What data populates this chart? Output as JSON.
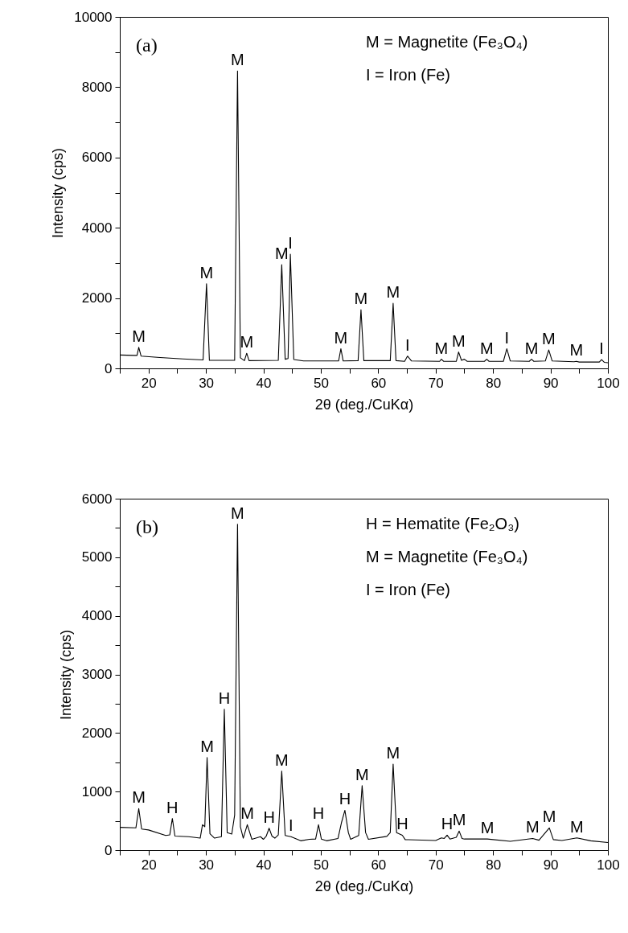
{
  "chart_data": [
    {
      "type": "line",
      "title": "(a)",
      "xlabel": "2θ (deg./CuKα)",
      "ylabel": "Intensity (cps)",
      "xlim": [
        15,
        100
      ],
      "xticks": [
        {
          "value": 15,
          "label": null
        },
        20,
        {
          "value": 25,
          "label": null
        },
        30,
        {
          "value": 35,
          "label": null
        },
        40,
        {
          "value": 45,
          "label": null
        },
        50,
        {
          "value": 55,
          "label": null
        },
        60,
        {
          "value": 65,
          "label": null
        },
        70,
        {
          "value": 75,
          "label": null
        },
        80,
        {
          "value": 85,
          "label": null
        },
        90,
        {
          "value": 95,
          "label": null
        },
        100
      ],
      "ylim": [
        0,
        10000
      ],
      "yticks": [
        0,
        {
          "value": 1000,
          "label": null
        },
        2000,
        {
          "value": 3000,
          "label": null
        },
        4000,
        {
          "value": 5000,
          "label": null
        },
        6000,
        {
          "value": 7000,
          "label": null
        },
        8000,
        {
          "value": 9000,
          "label": null
        },
        10000
      ],
      "x": [
        15,
        17.5,
        18,
        18.3,
        18.7,
        22,
        26,
        29.5,
        30.1,
        30.6,
        35,
        35.5,
        36,
        36.7,
        37.1,
        37.5,
        42.6,
        43.2,
        43.8,
        44.3,
        44.7,
        45.3,
        47,
        53.1,
        53.5,
        53.9,
        56.5,
        57,
        57.5,
        62.1,
        62.6,
        63.1,
        64.6,
        65.1,
        65.8,
        70.7,
        71,
        71.4,
        73.6,
        74,
        74.5,
        75,
        75.5,
        78.5,
        78.9,
        79.3,
        81.8,
        82.4,
        83,
        86.3,
        86.7,
        87.1,
        89.1,
        89.7,
        90.3,
        94.1,
        94.5,
        95,
        98.5,
        98.9,
        99.4,
        100
      ],
      "series": [
        {
          "color": "#000000",
          "values": [
            380,
            370,
            370,
            600,
            350,
            310,
            270,
            240,
            2410,
            230,
            230,
            8460,
            300,
            220,
            430,
            220,
            230,
            2950,
            260,
            280,
            3250,
            250,
            210,
            210,
            560,
            210,
            220,
            1670,
            220,
            220,
            1850,
            220,
            200,
            350,
            210,
            200,
            260,
            200,
            200,
            465,
            230,
            260,
            200,
            200,
            260,
            200,
            200,
            560,
            210,
            200,
            260,
            200,
            210,
            525,
            210,
            190,
            200,
            180,
            180,
            250,
            170,
            160
          ]
        }
      ],
      "annotations": [
        "M = Magnetite (Fe₃O₄)",
        "I = Iron (Fe)",
        {
          "text": "M",
          "x": 18.3,
          "y": 600
        },
        {
          "text": "M",
          "x": 30.1,
          "y": 2410
        },
        {
          "text": "M",
          "x": 35.5,
          "y": 8460
        },
        {
          "text": "M",
          "x": 37.1,
          "y": 430
        },
        {
          "text": "M",
          "x": 43.2,
          "y": 2950
        },
        {
          "text": "I",
          "x": 44.7,
          "y": 3250
        },
        {
          "text": "M",
          "x": 53.5,
          "y": 560
        },
        {
          "text": "M",
          "x": 57,
          "y": 1670
        },
        {
          "text": "M",
          "x": 62.6,
          "y": 1850
        },
        {
          "text": "I",
          "x": 65.1,
          "y": 350
        },
        {
          "text": "M",
          "x": 71,
          "y": 260
        },
        {
          "text": "M",
          "x": 74,
          "y": 465
        },
        {
          "text": "M",
          "x": 78.9,
          "y": 260
        },
        {
          "text": "I",
          "x": 82.4,
          "y": 560
        },
        {
          "text": "M",
          "x": 86.7,
          "y": 260
        },
        {
          "text": "M",
          "x": 89.7,
          "y": 525
        },
        {
          "text": "M",
          "x": 94.5,
          "y": 200
        },
        {
          "text": "I",
          "x": 98.9,
          "y": 250
        }
      ]
    },
    {
      "type": "line",
      "title": "(b)",
      "xlabel": "2θ (deg./CuKα)",
      "ylabel": "Intensity (cps)",
      "xlim": [
        15,
        100
      ],
      "xticks": [
        {
          "value": 15,
          "label": null
        },
        20,
        {
          "value": 25,
          "label": null
        },
        30,
        {
          "value": 35,
          "label": null
        },
        40,
        {
          "value": 45,
          "label": null
        },
        50,
        {
          "value": 55,
          "label": null
        },
        60,
        {
          "value": 65,
          "label": null
        },
        70,
        {
          "value": 75,
          "label": null
        },
        80,
        {
          "value": 85,
          "label": null
        },
        90,
        {
          "value": 95,
          "label": null
        },
        100
      ],
      "ylim": [
        0,
        6000
      ],
      "yticks": [
        0,
        {
          "value": 500,
          "label": null
        },
        1000,
        {
          "value": 1500,
          "label": null
        },
        2000,
        {
          "value": 2500,
          "label": null
        },
        3000,
        {
          "value": 3500,
          "label": null
        },
        4000,
        {
          "value": 4500,
          "label": null
        },
        5000,
        {
          "value": 5500,
          "label": null
        },
        6000
      ],
      "x": [
        15,
        17.8,
        18.3,
        18.8,
        20,
        23,
        23.7,
        24.15,
        24.6,
        27,
        29,
        29.4,
        29.8,
        30.2,
        30.7,
        31.5,
        32.7,
        33.2,
        33.7,
        34.5,
        35,
        35.5,
        36,
        36.5,
        37.2,
        38,
        39.5,
        40,
        40.5,
        41,
        41.5,
        42,
        42.6,
        43.2,
        43.8,
        44.8,
        46.5,
        48,
        49.1,
        49.6,
        50.1,
        51,
        53,
        53.6,
        54.2,
        54.8,
        55.2,
        56.6,
        57.2,
        57.8,
        58.3,
        61.5,
        62.1,
        62.6,
        63.2,
        64.2,
        64.7,
        70,
        71,
        71.5,
        72,
        72.5,
        73.6,
        74.1,
        74.6,
        75,
        79,
        83,
        86.9,
        88,
        89.8,
        90.5,
        92,
        94.6,
        97,
        100
      ],
      "series": [
        {
          "color": "#000000",
          "values": [
            390,
            380,
            710,
            360,
            345,
            250,
            260,
            540,
            240,
            230,
            205,
            435,
            400,
            1580,
            280,
            205,
            230,
            2405,
            300,
            275,
            600,
            5565,
            400,
            205,
            435,
            185,
            230,
            185,
            240,
            375,
            240,
            205,
            260,
            1350,
            250,
            230,
            160,
            185,
            190,
            435,
            190,
            160,
            200,
            470,
            680,
            300,
            185,
            250,
            1100,
            300,
            185,
            235,
            300,
            1470,
            300,
            255,
            180,
            165,
            210,
            200,
            255,
            190,
            220,
            325,
            200,
            190,
            190,
            150,
            200,
            170,
            380,
            180,
            165,
            210,
            160,
            130
          ]
        }
      ],
      "annotations": [
        "H = Hematite (Fe₂O₃)",
        "M = Magnetite (Fe₃O₄)",
        "I = Iron (Fe)",
        {
          "text": "M",
          "x": 18.3,
          "y": 710
        },
        {
          "text": "H",
          "x": 24.15,
          "y": 540
        },
        {
          "text": "M",
          "x": 30.2,
          "y": 1580
        },
        {
          "text": "H",
          "x": 33.2,
          "y": 2405
        },
        {
          "text": "M",
          "x": 35.5,
          "y": 5565
        },
        {
          "text": "M",
          "x": 37.2,
          "y": 435
        },
        {
          "text": "H",
          "x": 41,
          "y": 375
        },
        {
          "text": "M",
          "x": 43.2,
          "y": 1350
        },
        {
          "text": "I",
          "x": 44.8,
          "y": 230
        },
        {
          "text": "H",
          "x": 49.6,
          "y": 435
        },
        {
          "text": "H",
          "x": 54.2,
          "y": 680
        },
        {
          "text": "M",
          "x": 57.2,
          "y": 1100
        },
        {
          "text": "M",
          "x": 62.6,
          "y": 1470
        },
        {
          "text": "H",
          "x": 64.2,
          "y": 255
        },
        {
          "text": "H",
          "x": 72,
          "y": 255
        },
        {
          "text": "M",
          "x": 74.1,
          "y": 325
        },
        {
          "text": "M",
          "x": 79,
          "y": 190
        },
        {
          "text": "M",
          "x": 86.9,
          "y": 200
        },
        {
          "text": "M",
          "x": 89.8,
          "y": 380
        },
        {
          "text": "M",
          "x": 94.6,
          "y": 210
        }
      ]
    }
  ]
}
